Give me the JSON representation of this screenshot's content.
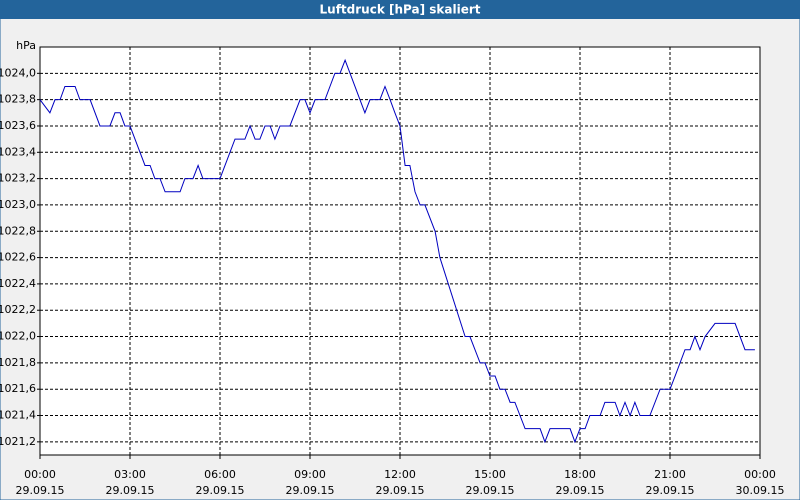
{
  "chart_data": {
    "type": "line",
    "title": "Luftdruck [hPa] skaliert",
    "ylabel": "hPa",
    "xlim": [
      0,
      24
    ],
    "ylim": [
      1021.1,
      1024.2
    ],
    "grid": true,
    "xticks": [
      {
        "value": 0,
        "label": [
          "00:00",
          "29.09.15"
        ]
      },
      {
        "value": 3,
        "label": [
          "03:00",
          "29.09.15"
        ]
      },
      {
        "value": 6,
        "label": [
          "06:00",
          "29.09.15"
        ]
      },
      {
        "value": 9,
        "label": [
          "09:00",
          "29.09.15"
        ]
      },
      {
        "value": 12,
        "label": [
          "12:00",
          "29.09.15"
        ]
      },
      {
        "value": 15,
        "label": [
          "15:00",
          "29.09.15"
        ]
      },
      {
        "value": 18,
        "label": [
          "18:00",
          "29.09.15"
        ]
      },
      {
        "value": 21,
        "label": [
          "21:00",
          "29.09.15"
        ]
      },
      {
        "value": 24,
        "label": [
          "00:00",
          "30.09.15"
        ]
      }
    ],
    "yticks": [
      {
        "value": 1021.2,
        "label": "1021,2"
      },
      {
        "value": 1021.4,
        "label": "1021,4"
      },
      {
        "value": 1021.6,
        "label": "1021,6"
      },
      {
        "value": 1021.8,
        "label": "1021,8"
      },
      {
        "value": 1022.0,
        "label": "1022,0"
      },
      {
        "value": 1022.2,
        "label": "1022,2"
      },
      {
        "value": 1022.4,
        "label": "1022,4"
      },
      {
        "value": 1022.6,
        "label": "1022,6"
      },
      {
        "value": 1022.8,
        "label": "1022,8"
      },
      {
        "value": 1023.0,
        "label": "1023,0"
      },
      {
        "value": 1023.2,
        "label": "1023,2"
      },
      {
        "value": 1023.4,
        "label": "1023,4"
      },
      {
        "value": 1023.6,
        "label": "1023,6"
      },
      {
        "value": 1023.8,
        "label": "1023,8"
      },
      {
        "value": 1024.0,
        "label": "1024,0"
      }
    ],
    "series": [
      {
        "color": "#0000c0",
        "x": [
          0,
          0.33,
          0.5,
          0.67,
          0.83,
          1.17,
          1.33,
          1.67,
          2,
          2.33,
          2.5,
          2.67,
          2.83,
          3,
          3.5,
          3.67,
          3.83,
          4,
          4.17,
          4.67,
          4.83,
          5.1,
          5.27,
          5.43,
          6,
          6.5,
          6.83,
          7,
          7.17,
          7.33,
          7.5,
          7.67,
          7.83,
          8,
          8.33,
          8.67,
          8.83,
          9,
          9.17,
          9.5,
          9.83,
          10,
          10.17,
          10.83,
          11,
          11.33,
          11.5,
          11.67,
          11.83,
          12,
          12.17,
          12.33,
          12.5,
          12.67,
          12.83,
          13.17,
          13.33,
          14.17,
          14.33,
          14.67,
          14.83,
          15,
          15.17,
          15.33,
          15.5,
          15.67,
          15.83,
          16.17,
          16.33,
          16.67,
          16.83,
          17,
          17.67,
          17.83,
          18,
          18.17,
          18.33,
          18.67,
          18.83,
          19.17,
          19.33,
          19.5,
          19.67,
          19.83,
          20,
          20.33,
          20.67,
          21,
          21.17,
          21.5,
          21.67,
          21.83,
          22,
          22.17,
          22.5,
          23.17,
          23.5,
          23.83
        ],
        "values": [
          1023.8,
          1023.7,
          1023.8,
          1023.8,
          1023.9,
          1023.9,
          1023.8,
          1023.8,
          1023.6,
          1023.6,
          1023.7,
          1023.7,
          1023.6,
          1023.6,
          1023.3,
          1023.3,
          1023.2,
          1023.2,
          1023.1,
          1023.1,
          1023.2,
          1023.2,
          1023.3,
          1023.2,
          1023.2,
          1023.5,
          1023.5,
          1023.6,
          1023.5,
          1023.5,
          1023.6,
          1023.6,
          1023.5,
          1023.6,
          1023.6,
          1023.8,
          1023.8,
          1023.7,
          1023.8,
          1023.8,
          1024.0,
          1024.0,
          1024.1,
          1023.7,
          1023.8,
          1023.8,
          1023.9,
          1023.8,
          1023.7,
          1023.6,
          1023.3,
          1023.3,
          1023.1,
          1023.0,
          1023.0,
          1022.8,
          1022.6,
          1022.0,
          1022.0,
          1021.8,
          1021.8,
          1021.7,
          1021.7,
          1021.6,
          1021.6,
          1021.5,
          1021.5,
          1021.3,
          1021.3,
          1021.3,
          1021.2,
          1021.3,
          1021.3,
          1021.2,
          1021.3,
          1021.3,
          1021.4,
          1021.4,
          1021.5,
          1021.5,
          1021.4,
          1021.5,
          1021.4,
          1021.5,
          1021.4,
          1021.4,
          1021.6,
          1021.6,
          1021.7,
          1021.9,
          1021.9,
          1022.0,
          1021.9,
          1022.0,
          1022.1,
          1022.1,
          1021.9,
          1021.9
        ]
      }
    ]
  }
}
